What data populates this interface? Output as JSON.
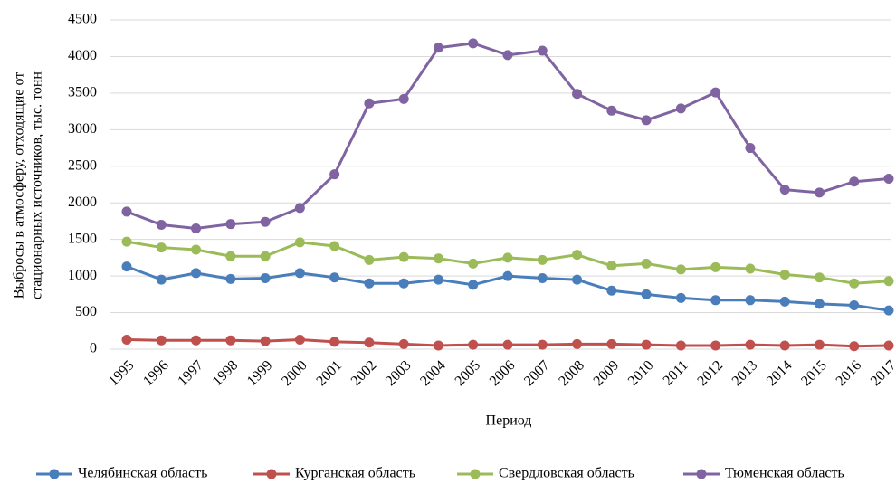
{
  "chart_data": {
    "type": "line",
    "x_label": "Период",
    "y_label": [
      "Выбросы в атмосферу, отходящие от",
      "стационарных источников, тыс. тонн"
    ],
    "categories": [
      "1995",
      "1996",
      "1997",
      "1998",
      "1999",
      "2000",
      "2001",
      "2002",
      "2003",
      "2004",
      "2005",
      "2006",
      "2007",
      "2008",
      "2009",
      "2010",
      "2011",
      "2012",
      "2013",
      "2014",
      "2015",
      "2016",
      "2017"
    ],
    "series": [
      {
        "name": "Челябинская область",
        "color": "#4a7ebb",
        "values": [
          1130,
          950,
          1040,
          960,
          970,
          1040,
          980,
          900,
          900,
          950,
          880,
          1000,
          970,
          950,
          800,
          750,
          700,
          670,
          670,
          650,
          620,
          600,
          530
        ]
      },
      {
        "name": "Курганская область",
        "color": "#c0504d",
        "values": [
          130,
          120,
          120,
          120,
          110,
          130,
          100,
          90,
          70,
          50,
          60,
          60,
          60,
          70,
          70,
          60,
          50,
          50,
          60,
          50,
          60,
          40,
          50
        ]
      },
      {
        "name": "Свердловская область",
        "color": "#9bbb59",
        "values": [
          1470,
          1390,
          1360,
          1270,
          1270,
          1460,
          1410,
          1220,
          1260,
          1240,
          1170,
          1250,
          1220,
          1290,
          1140,
          1170,
          1090,
          1120,
          1100,
          1020,
          980,
          900,
          930
        ]
      },
      {
        "name": "Тюменская область",
        "color": "#8064a2",
        "values": [
          1880,
          1700,
          1650,
          1710,
          1740,
          1930,
          2390,
          3360,
          3420,
          4120,
          4180,
          4020,
          4080,
          3490,
          3260,
          3130,
          3290,
          3510,
          2750,
          2180,
          2140,
          2290,
          2330
        ]
      }
    ],
    "ylim": [
      0,
      4500
    ],
    "yticks": [
      0,
      500,
      1000,
      1500,
      2000,
      2500,
      3000,
      3500,
      4000,
      4500
    ],
    "grid": true,
    "legend": "bottom"
  }
}
